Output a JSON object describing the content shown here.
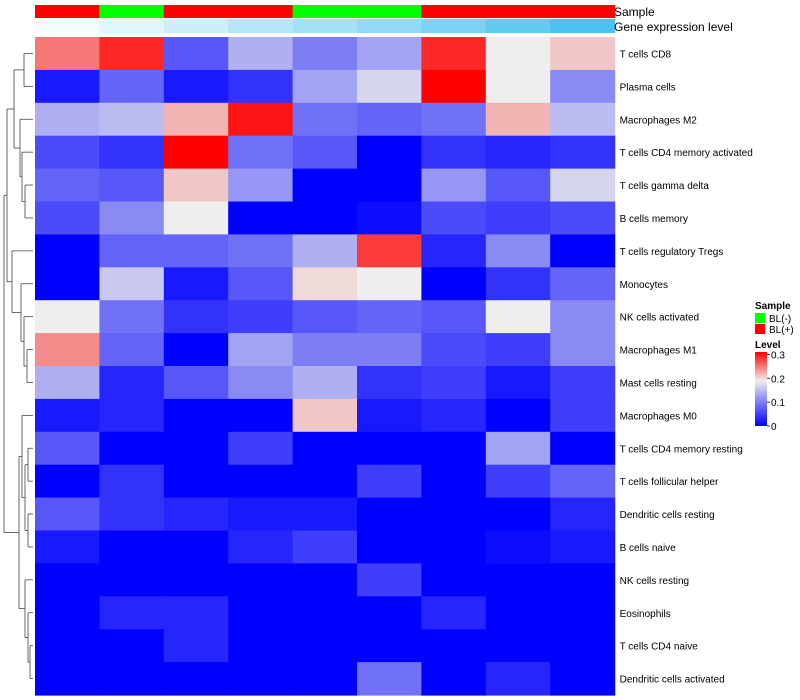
{
  "chart_data": {
    "type": "heatmap",
    "title": "",
    "annotation_tracks": [
      {
        "name": "Sample",
        "values": [
          "BL(+)",
          "BL(-)",
          "BL(+)",
          "BL(+)",
          "BL(-)",
          "BL(-)",
          "BL(+)",
          "BL(+)",
          "BL(+)"
        ]
      },
      {
        "name": "Gene expression level",
        "values": [
          0.02,
          0.05,
          0.08,
          0.12,
          0.15,
          0.18,
          0.22,
          0.26,
          0.3
        ]
      }
    ],
    "rows": [
      "T cells CD8",
      "Plasma cells",
      "Macrophages M2",
      "T cells CD4 memory activated",
      "T cells gamma delta",
      "B cells memory",
      "T cells regulatory  Tregs",
      "Monocytes",
      "NK cells activated",
      "Macrophages M1",
      "Mast cells resting",
      "Macrophages M0",
      "T cells CD4 memory resting",
      "T cells follicular helper",
      "Dendritic cells resting",
      "B cells naive",
      "NK cells resting",
      "Eosinophils",
      "T cells CD4 naive",
      "Dendritic cells activated"
    ],
    "values": [
      [
        0.25,
        0.29,
        0.07,
        0.14,
        0.1,
        0.13,
        0.29,
        0.19,
        0.21
      ],
      [
        0.02,
        0.08,
        0.02,
        0.04,
        0.13,
        0.17,
        0.31,
        0.19,
        0.11
      ],
      [
        0.14,
        0.15,
        0.22,
        0.3,
        0.09,
        0.08,
        0.09,
        0.22,
        0.15
      ],
      [
        0.06,
        0.04,
        0.31,
        0.09,
        0.07,
        0.0,
        0.04,
        0.03,
        0.04
      ],
      [
        0.08,
        0.07,
        0.21,
        0.12,
        0.0,
        0.0,
        0.12,
        0.07,
        0.17
      ],
      [
        0.06,
        0.11,
        0.19,
        0.0,
        0.0,
        0.01,
        0.06,
        0.05,
        0.06
      ],
      [
        0.0,
        0.08,
        0.08,
        0.09,
        0.14,
        0.28,
        0.03,
        0.11,
        0.0
      ],
      [
        0.0,
        0.16,
        0.02,
        0.07,
        0.2,
        0.19,
        0.0,
        0.04,
        0.08
      ],
      [
        0.19,
        0.09,
        0.04,
        0.05,
        0.07,
        0.08,
        0.07,
        0.19,
        0.11
      ],
      [
        0.24,
        0.08,
        0.0,
        0.13,
        0.1,
        0.1,
        0.06,
        0.05,
        0.11
      ],
      [
        0.14,
        0.03,
        0.07,
        0.11,
        0.14,
        0.04,
        0.05,
        0.02,
        0.05
      ],
      [
        0.02,
        0.03,
        0.0,
        0.0,
        0.21,
        0.02,
        0.03,
        0.0,
        0.05
      ],
      [
        0.07,
        0.0,
        0.0,
        0.05,
        0.0,
        0.0,
        0.0,
        0.13,
        0.0
      ],
      [
        0.0,
        0.04,
        0.0,
        0.0,
        0.0,
        0.05,
        0.0,
        0.05,
        0.08
      ],
      [
        0.07,
        0.04,
        0.03,
        0.02,
        0.02,
        0.0,
        0.0,
        0.0,
        0.03
      ],
      [
        0.02,
        0.0,
        0.0,
        0.03,
        0.05,
        0.0,
        0.0,
        0.01,
        0.02
      ],
      [
        0.0,
        0.0,
        0.0,
        0.0,
        0.0,
        0.05,
        0.0,
        0.0,
        0.0
      ],
      [
        0.0,
        0.03,
        0.03,
        0.0,
        0.0,
        0.0,
        0.03,
        0.0,
        0.0
      ],
      [
        0.0,
        0.0,
        0.03,
        0.0,
        0.0,
        0.0,
        0.0,
        0.0,
        0.0
      ],
      [
        0.0,
        0.0,
        0.0,
        0.0,
        0.0,
        0.09,
        0.0,
        0.03,
        0.0
      ]
    ],
    "legend": {
      "sample_title": "Sample",
      "sample_items": [
        {
          "label": "BL(-)",
          "color": "#00ff00"
        },
        {
          "label": "BL(+)",
          "color": "#ff0000"
        }
      ],
      "level_title": "Level",
      "level_ticks": [
        {
          "value": 0.3,
          "label": "0.3"
        },
        {
          "value": 0.2,
          "label": "0.2"
        },
        {
          "value": 0.1,
          "label": "0.1"
        },
        {
          "value": 0.0,
          "label": "0"
        }
      ]
    },
    "color_scale": {
      "low": "#0000ff",
      "mid": "#eeeeee",
      "high": "#ff0000",
      "min": 0,
      "mid_value": 0.19,
      "max": 0.31
    },
    "gene_level_scale": {
      "low": "#ffffff",
      "high": "#49c3ee",
      "min": 0,
      "max": 0.3
    }
  }
}
